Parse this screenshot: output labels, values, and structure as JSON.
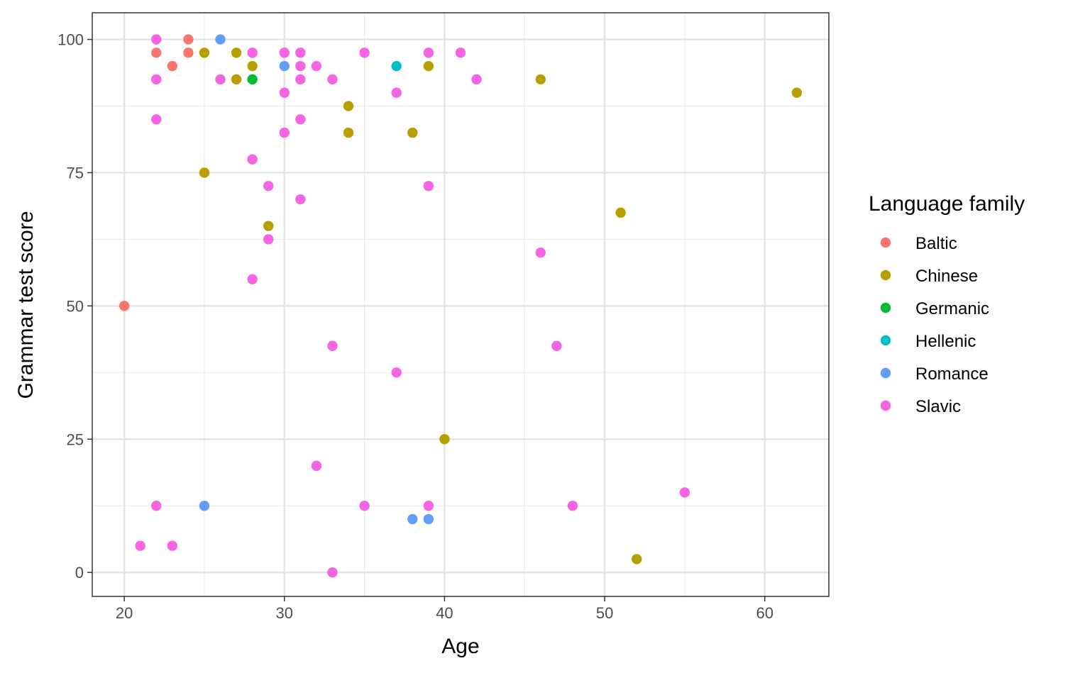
{
  "chart_data": {
    "type": "scatter",
    "xlabel": "Age",
    "ylabel": "Grammar test score",
    "xlim": [
      18,
      64
    ],
    "ylim": [
      -4.5,
      105
    ],
    "x_ticks": [
      20,
      30,
      40,
      50,
      60
    ],
    "y_ticks": [
      0,
      25,
      50,
      75,
      100
    ],
    "grid": true,
    "legend": {
      "title": "Language family",
      "position": "right"
    },
    "series": [
      {
        "name": "Baltic",
        "color": "#F8766D",
        "points": [
          [
            20,
            50
          ],
          [
            22,
            97.5
          ],
          [
            23,
            95
          ],
          [
            24,
            100
          ],
          [
            24,
            97.5
          ]
        ]
      },
      {
        "name": "Chinese",
        "color": "#B79F00",
        "points": [
          [
            25,
            97.5
          ],
          [
            25,
            75
          ],
          [
            27,
            97.5
          ],
          [
            27,
            92.5
          ],
          [
            28,
            95
          ],
          [
            29,
            65
          ],
          [
            34,
            87.5
          ],
          [
            34,
            82.5
          ],
          [
            38,
            82.5
          ],
          [
            39,
            95
          ],
          [
            40,
            25
          ],
          [
            46,
            92.5
          ],
          [
            51,
            67.5
          ],
          [
            52,
            2.5
          ],
          [
            62,
            90
          ]
        ]
      },
      {
        "name": "Germanic",
        "color": "#00BA38",
        "points": [
          [
            28,
            92.5
          ]
        ]
      },
      {
        "name": "Hellenic",
        "color": "#00BFC4",
        "points": [
          [
            37,
            95
          ]
        ]
      },
      {
        "name": "Romance",
        "color": "#619CFF",
        "points": [
          [
            26,
            100
          ],
          [
            30,
            95
          ],
          [
            25,
            12.5
          ],
          [
            38,
            10
          ],
          [
            39,
            10
          ]
        ]
      },
      {
        "name": "Slavic",
        "color": "#F564E3",
        "points": [
          [
            22,
            100
          ],
          [
            22,
            92.5
          ],
          [
            22,
            85
          ],
          [
            22,
            12.5
          ],
          [
            21,
            5
          ],
          [
            23,
            5
          ],
          [
            26,
            92.5
          ],
          [
            28,
            97.5
          ],
          [
            28,
            77.5
          ],
          [
            28,
            55
          ],
          [
            29,
            72.5
          ],
          [
            29,
            62.5
          ],
          [
            30,
            97.5
          ],
          [
            30,
            90
          ],
          [
            30,
            82.5
          ],
          [
            31,
            97.5
          ],
          [
            31,
            95
          ],
          [
            31,
            92.5
          ],
          [
            31,
            85
          ],
          [
            31,
            70
          ],
          [
            32,
            95
          ],
          [
            32,
            20
          ],
          [
            33,
            92.5
          ],
          [
            33,
            42.5
          ],
          [
            33,
            0
          ],
          [
            35,
            97.5
          ],
          [
            35,
            12.5
          ],
          [
            37,
            90
          ],
          [
            37,
            37.5
          ],
          [
            39,
            97.5
          ],
          [
            39,
            72.5
          ],
          [
            39,
            12.5
          ],
          [
            41,
            97.5
          ],
          [
            42,
            92.5
          ],
          [
            46,
            60
          ],
          [
            47,
            42.5
          ],
          [
            48,
            12.5
          ],
          [
            55,
            15
          ]
        ]
      }
    ]
  }
}
